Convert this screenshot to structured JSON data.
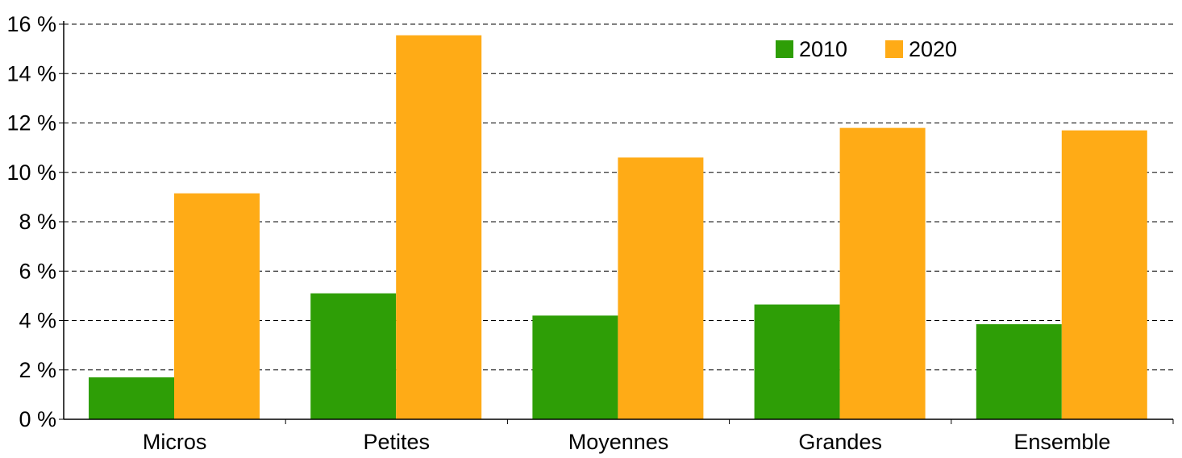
{
  "chart_data": {
    "type": "bar",
    "categories": [
      "Micros",
      "Petites",
      "Moyennes",
      "Grandes",
      "Ensemble"
    ],
    "series": [
      {
        "name": "2010",
        "color": "#2e9e06",
        "values": [
          1.7,
          5.1,
          4.2,
          4.65,
          3.85
        ]
      },
      {
        "name": "2020",
        "color": "#ffab16",
        "values": [
          9.15,
          15.55,
          10.6,
          11.8,
          11.7
        ]
      }
    ],
    "ylim": [
      0,
      16
    ],
    "yticks": [
      0,
      2,
      4,
      6,
      8,
      10,
      12,
      14,
      16
    ],
    "ytick_labels": [
      "0 %",
      "2 %",
      "4 %",
      "6 %",
      "8 %",
      "10 %",
      "12 %",
      "14 %",
      "16 %"
    ],
    "grid": true,
    "grid_style": "dashed",
    "legend_position": "top-right",
    "title": "",
    "xlabel": "",
    "ylabel": ""
  }
}
